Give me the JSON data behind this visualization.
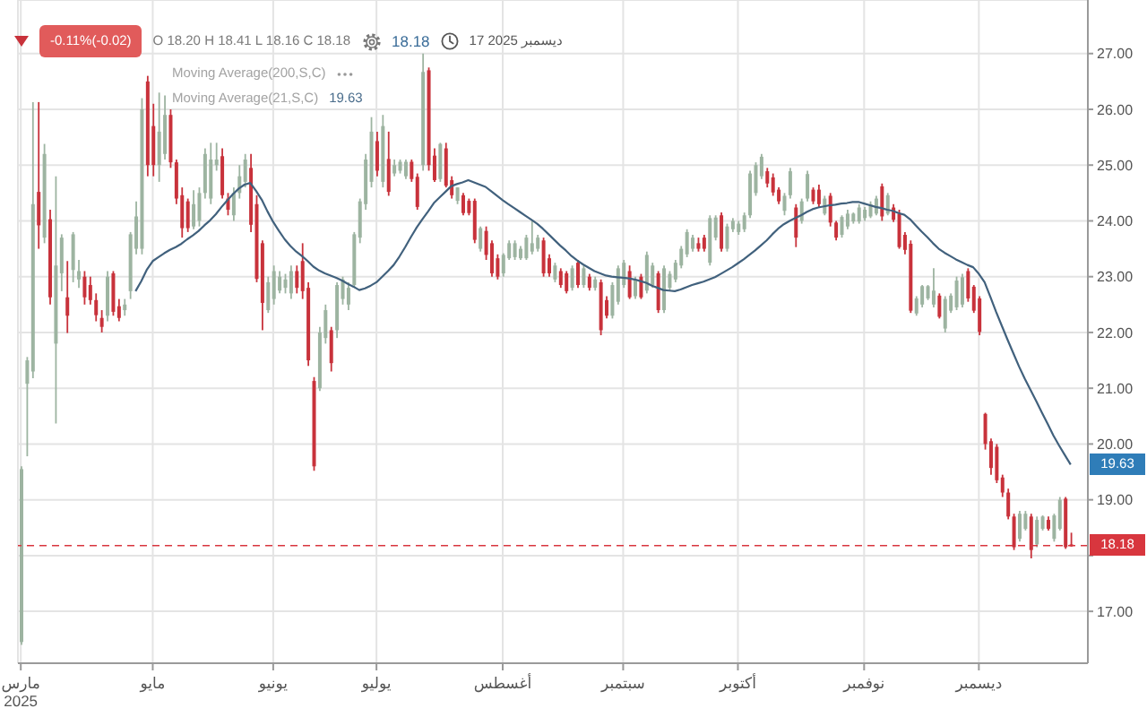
{
  "chart_data": {
    "type": "candlestick",
    "categories": [
      "مارس\n2025",
      null,
      null,
      null,
      null,
      null,
      null,
      null,
      null,
      null,
      null,
      null,
      null,
      null,
      null,
      null,
      null,
      null,
      null,
      null,
      null,
      null,
      null,
      "مايو",
      null,
      null,
      null,
      null,
      null,
      null,
      null,
      null,
      null,
      null,
      null,
      null,
      null,
      null,
      null,
      null,
      null,
      null,
      null,
      null,
      "يونيو",
      null,
      null,
      null,
      null,
      null,
      null,
      null,
      null,
      null,
      null,
      null,
      null,
      null,
      null,
      null,
      null,
      null,
      "يوليو",
      null,
      null,
      null,
      null,
      null,
      null,
      null,
      null,
      null,
      null,
      null,
      null,
      null,
      null,
      null,
      null,
      null,
      null,
      null,
      null,
      null,
      "أغسطس",
      null,
      null,
      null,
      null,
      null,
      null,
      null,
      null,
      null,
      null,
      null,
      null,
      null,
      null,
      null,
      null,
      null,
      null,
      null,
      null,
      "سبتمبر",
      null,
      null,
      null,
      null,
      null,
      null,
      null,
      null,
      null,
      null,
      null,
      null,
      null,
      null,
      null,
      null,
      null,
      null,
      null,
      "أكتوبر",
      null,
      null,
      null,
      null,
      null,
      null,
      null,
      null,
      null,
      null,
      null,
      null,
      null,
      null,
      null,
      null,
      null,
      null,
      null,
      null,
      null,
      "نوفمبر",
      null,
      null,
      null,
      null,
      null,
      null,
      null,
      null,
      null,
      null,
      null,
      null,
      null,
      null,
      null,
      null,
      null,
      null,
      null,
      "ديسمبر",
      null,
      null,
      null,
      null,
      null,
      null,
      null,
      null,
      null,
      null,
      null,
      null,
      null,
      null,
      null,
      null
    ],
    "ohlc": [
      [
        16.45,
        19.6,
        16.4,
        19.55
      ],
      [
        21.08,
        21.56,
        19.78,
        21.5
      ],
      [
        21.3,
        26.13,
        21.18,
        24.3
      ],
      [
        24.52,
        26.13,
        23.5,
        23.92
      ],
      [
        23.7,
        25.38,
        23.6,
        25.2
      ],
      [
        24.03,
        24.2,
        22.5,
        22.63
      ],
      [
        21.8,
        24.8,
        20.37,
        23.2
      ],
      [
        23.06,
        23.76,
        22.74,
        23.7
      ],
      [
        22.63,
        23.28,
        21.99,
        22.3
      ],
      [
        23.12,
        23.8,
        22.9,
        23.76
      ],
      [
        22.95,
        23.3,
        22.8,
        23.1
      ],
      [
        23.0,
        23.1,
        22.5,
        22.63
      ],
      [
        22.85,
        23.0,
        22.5,
        22.58
      ],
      [
        22.58,
        22.7,
        22.2,
        22.31
      ],
      [
        22.26,
        22.4,
        22.0,
        22.1
      ],
      [
        22.3,
        23.1,
        22.2,
        23.0
      ],
      [
        23.06,
        23.1,
        22.3,
        22.37
      ],
      [
        22.47,
        22.6,
        22.2,
        22.26
      ],
      [
        22.4,
        22.6,
        22.3,
        22.5
      ],
      [
        22.74,
        23.8,
        22.6,
        23.76
      ],
      [
        23.5,
        24.35,
        23.4,
        24.08
      ],
      [
        23.5,
        26.2,
        23.4,
        26.0
      ],
      [
        26.5,
        26.6,
        24.8,
        25.0
      ],
      [
        25.7,
        26.1,
        24.8,
        25.0
      ],
      [
        25.0,
        26.3,
        24.7,
        25.6
      ],
      [
        25.2,
        26.25,
        25.1,
        25.9
      ],
      [
        25.9,
        26.0,
        24.95,
        25.05
      ],
      [
        25.05,
        25.1,
        24.3,
        24.4
      ],
      [
        24.46,
        24.6,
        23.7,
        23.87
      ],
      [
        24.35,
        24.4,
        23.8,
        23.87
      ],
      [
        23.9,
        24.55,
        23.85,
        24.3
      ],
      [
        24.0,
        24.6,
        23.9,
        24.5
      ],
      [
        24.5,
        25.3,
        24.4,
        25.2
      ],
      [
        24.4,
        25.4,
        24.3,
        25.1
      ],
      [
        25.0,
        25.4,
        24.9,
        25.1
      ],
      [
        25.16,
        25.3,
        24.4,
        24.46
      ],
      [
        24.4,
        24.5,
        24.1,
        24.2
      ],
      [
        24.1,
        24.6,
        24.0,
        24.5
      ],
      [
        24.5,
        25.0,
        24.4,
        24.8
      ],
      [
        24.7,
        25.2,
        24.6,
        25.1
      ],
      [
        24.95,
        25.2,
        23.8,
        23.93
      ],
      [
        24.3,
        24.46,
        22.9,
        22.96
      ],
      [
        23.6,
        23.65,
        22.04,
        22.53
      ],
      [
        22.4,
        23.0,
        22.35,
        22.9
      ],
      [
        22.6,
        23.2,
        22.5,
        23.1
      ],
      [
        22.75,
        23.1,
        22.7,
        23.0
      ],
      [
        22.8,
        23.05,
        22.7,
        22.95
      ],
      [
        22.7,
        23.2,
        22.6,
        23.1
      ],
      [
        23.1,
        23.2,
        22.7,
        22.8
      ],
      [
        23.28,
        23.6,
        22.6,
        22.74
      ],
      [
        22.8,
        22.9,
        21.4,
        21.5
      ],
      [
        21.13,
        21.2,
        19.52,
        19.6
      ],
      [
        21.0,
        22.1,
        20.95,
        22.0
      ],
      [
        21.9,
        22.5,
        21.8,
        22.4
      ],
      [
        22.04,
        22.1,
        21.3,
        21.45
      ],
      [
        22.04,
        22.9,
        21.9,
        22.85
      ],
      [
        22.6,
        23.0,
        22.5,
        22.95
      ],
      [
        22.5,
        22.9,
        22.4,
        22.8
      ],
      [
        22.85,
        23.8,
        22.8,
        23.76
      ],
      [
        23.7,
        24.4,
        23.6,
        24.35
      ],
      [
        24.3,
        25.2,
        24.2,
        25.1
      ],
      [
        24.7,
        25.86,
        24.6,
        25.6
      ],
      [
        25.43,
        25.6,
        24.8,
        24.9
      ],
      [
        24.7,
        25.9,
        24.6,
        25.7
      ],
      [
        25.11,
        25.6,
        24.45,
        24.52
      ],
      [
        24.85,
        25.1,
        24.8,
        25.0
      ],
      [
        24.9,
        25.1,
        24.85,
        25.06
      ],
      [
        24.8,
        25.1,
        24.75,
        25.06
      ],
      [
        25.06,
        25.1,
        24.7,
        24.75
      ],
      [
        24.79,
        24.85,
        24.2,
        24.25
      ],
      [
        25.0,
        27.0,
        24.9,
        26.67
      ],
      [
        26.7,
        26.75,
        24.9,
        25.0
      ],
      [
        25.17,
        25.3,
        24.7,
        24.73
      ],
      [
        24.75,
        25.4,
        24.7,
        25.38
      ],
      [
        25.3,
        25.4,
        24.6,
        24.63
      ],
      [
        24.73,
        24.8,
        24.4,
        24.46
      ],
      [
        24.36,
        24.6,
        24.3,
        24.6
      ],
      [
        24.46,
        24.5,
        24.1,
        24.14
      ],
      [
        24.36,
        24.4,
        24.1,
        24.14
      ],
      [
        24.36,
        24.4,
        23.6,
        23.66
      ],
      [
        23.5,
        23.9,
        23.45,
        23.87
      ],
      [
        23.82,
        23.9,
        23.3,
        23.39
      ],
      [
        23.6,
        23.65,
        23.0,
        23.06
      ],
      [
        23.33,
        23.4,
        22.95,
        23.0
      ],
      [
        23.06,
        23.42,
        23.0,
        23.39
      ],
      [
        23.33,
        23.65,
        23.3,
        23.6
      ],
      [
        23.35,
        23.65,
        23.3,
        23.6
      ],
      [
        23.33,
        23.55,
        23.3,
        23.5
      ],
      [
        23.33,
        23.75,
        23.3,
        23.7
      ],
      [
        23.45,
        24.0,
        23.4,
        23.6
      ],
      [
        23.5,
        23.75,
        23.45,
        23.7
      ],
      [
        23.65,
        23.7,
        23.0,
        23.06
      ],
      [
        23.33,
        23.4,
        23.0,
        23.06
      ],
      [
        22.95,
        23.25,
        22.9,
        23.2
      ],
      [
        23.1,
        23.15,
        22.8,
        22.85
      ],
      [
        23.06,
        23.1,
        22.7,
        22.74
      ],
      [
        22.8,
        23.2,
        22.75,
        23.15
      ],
      [
        23.25,
        23.3,
        22.8,
        22.85
      ],
      [
        22.85,
        23.2,
        22.8,
        23.15
      ],
      [
        23.0,
        23.05,
        22.75,
        22.8
      ],
      [
        22.8,
        23.0,
        22.75,
        22.95
      ],
      [
        22.9,
        22.95,
        21.95,
        22.04
      ],
      [
        22.58,
        22.65,
        22.25,
        22.3
      ],
      [
        22.3,
        22.9,
        22.25,
        22.85
      ],
      [
        22.55,
        23.2,
        22.5,
        23.15
      ],
      [
        22.85,
        23.3,
        22.8,
        23.25
      ],
      [
        23.1,
        23.2,
        22.6,
        22.63
      ],
      [
        22.65,
        23.0,
        22.6,
        22.95
      ],
      [
        23.0,
        23.05,
        22.6,
        22.63
      ],
      [
        22.75,
        23.45,
        22.7,
        23.39
      ],
      [
        22.85,
        23.25,
        22.8,
        23.2
      ],
      [
        23.06,
        23.1,
        22.35,
        22.4
      ],
      [
        22.4,
        23.2,
        22.35,
        23.15
      ],
      [
        22.8,
        23.1,
        22.75,
        23.05
      ],
      [
        22.95,
        23.3,
        22.9,
        23.25
      ],
      [
        23.2,
        23.55,
        23.15,
        23.5
      ],
      [
        23.4,
        23.85,
        23.35,
        23.8
      ],
      [
        23.5,
        23.75,
        23.45,
        23.7
      ],
      [
        23.6,
        23.7,
        23.45,
        23.5
      ],
      [
        23.7,
        23.75,
        23.45,
        23.5
      ],
      [
        23.25,
        24.1,
        23.2,
        24.05
      ],
      [
        23.7,
        24.1,
        23.65,
        24.06
      ],
      [
        24.1,
        24.15,
        23.45,
        23.5
      ],
      [
        23.5,
        23.95,
        23.45,
        23.9
      ],
      [
        23.85,
        24.05,
        23.8,
        24.0
      ],
      [
        23.8,
        24.0,
        23.75,
        23.95
      ],
      [
        23.85,
        24.15,
        23.8,
        24.1
      ],
      [
        24.1,
        24.9,
        24.05,
        24.85
      ],
      [
        24.5,
        25.05,
        24.45,
        25.0
      ],
      [
        24.8,
        25.2,
        24.75,
        25.15
      ],
      [
        24.89,
        24.95,
        24.6,
        24.67
      ],
      [
        24.78,
        24.85,
        24.45,
        24.51
      ],
      [
        24.56,
        24.6,
        24.3,
        24.35
      ],
      [
        24.18,
        24.5,
        24.1,
        24.45
      ],
      [
        24.46,
        24.95,
        24.4,
        24.89
      ],
      [
        24.24,
        24.3,
        23.53,
        23.7
      ],
      [
        24.0,
        24.4,
        23.95,
        24.35
      ],
      [
        24.4,
        24.9,
        24.35,
        24.84
      ],
      [
        24.56,
        24.6,
        24.3,
        24.35
      ],
      [
        24.56,
        24.65,
        24.25,
        24.3
      ],
      [
        24.13,
        24.45,
        24.1,
        24.4
      ],
      [
        24.45,
        24.5,
        23.9,
        23.97
      ],
      [
        23.97,
        24.0,
        23.65,
        23.7
      ],
      [
        23.75,
        24.1,
        23.7,
        24.07
      ],
      [
        23.9,
        24.2,
        23.85,
        24.13
      ],
      [
        23.99,
        24.15,
        23.95,
        24.13
      ],
      [
        23.99,
        24.3,
        23.95,
        24.24
      ],
      [
        24.05,
        24.25,
        24.0,
        24.2
      ],
      [
        24.08,
        24.35,
        24.05,
        24.3
      ],
      [
        24.13,
        24.45,
        24.1,
        24.4
      ],
      [
        24.62,
        24.67,
        24.0,
        24.08
      ],
      [
        24.13,
        24.5,
        24.1,
        24.46
      ],
      [
        24.24,
        24.3,
        23.98,
        24.02
      ],
      [
        24.13,
        24.2,
        23.5,
        23.53
      ],
      [
        23.75,
        23.8,
        23.4,
        23.48
      ],
      [
        23.59,
        23.65,
        22.35,
        22.39
      ],
      [
        22.34,
        22.65,
        22.3,
        22.61
      ],
      [
        22.5,
        22.85,
        22.45,
        22.83
      ],
      [
        22.61,
        22.85,
        22.58,
        22.83
      ],
      [
        22.5,
        23.15,
        22.45,
        22.75
      ],
      [
        22.66,
        22.7,
        22.25,
        22.28
      ],
      [
        22.07,
        22.65,
        22.0,
        22.6
      ],
      [
        22.39,
        22.7,
        22.35,
        22.66
      ],
      [
        22.45,
        23.0,
        22.4,
        22.93
      ],
      [
        22.5,
        23.05,
        22.45,
        22.99
      ],
      [
        23.1,
        23.15,
        22.55,
        22.61
      ],
      [
        22.82,
        22.85,
        22.35,
        22.39
      ],
      [
        22.61,
        22.65,
        21.95,
        22.01
      ],
      [
        20.54,
        20.56,
        19.9,
        20.0
      ],
      [
        20.05,
        20.1,
        19.45,
        19.57
      ],
      [
        19.95,
        20.0,
        19.3,
        19.35
      ],
      [
        19.4,
        19.45,
        19.05,
        19.13
      ],
      [
        19.13,
        19.2,
        18.65,
        18.7
      ],
      [
        18.7,
        18.75,
        18.1,
        18.15
      ],
      [
        18.3,
        18.8,
        18.25,
        18.75
      ],
      [
        18.48,
        18.8,
        18.45,
        18.75
      ],
      [
        18.7,
        18.75,
        17.95,
        18.1
      ],
      [
        18.2,
        18.7,
        18.15,
        18.64
      ],
      [
        18.48,
        18.72,
        18.45,
        18.7
      ],
      [
        18.64,
        18.7,
        18.45,
        18.48
      ],
      [
        18.3,
        18.75,
        18.25,
        18.72
      ],
      [
        18.48,
        19.05,
        18.45,
        19.0
      ],
      [
        19.02,
        19.05,
        18.12,
        18.15
      ],
      [
        18.2,
        18.41,
        18.16,
        18.18
      ]
    ],
    "colors": [
      "#9db4a1",
      "#9db4a1",
      "#9db4a1",
      "#c8323b",
      "#9db4a1",
      "#c8323b",
      "#9db4a1",
      "#9db4a1",
      "#c8323b",
      "#9db4a1",
      "#9db4a1",
      "#c8323b",
      "#c8323b",
      "#c8323b",
      "#c8323b",
      "#9db4a1",
      "#c8323b",
      "#c8323b",
      "#9db4a1",
      "#9db4a1",
      "#9db4a1",
      "#9db4a1",
      "#c8323b",
      "#c8323b",
      "#9db4a1",
      "#9db4a1",
      "#c8323b",
      "#c8323b",
      "#c8323b",
      "#c8323b",
      "#9db4a1",
      "#9db4a1",
      "#9db4a1",
      "#9db4a1",
      "#9db4a1",
      "#c8323b",
      "#c8323b",
      "#9db4a1",
      "#9db4a1",
      "#9db4a1",
      "#c8323b",
      "#c8323b",
      "#c8323b",
      "#9db4a1",
      "#9db4a1",
      "#9db4a1",
      "#9db4a1",
      "#9db4a1",
      "#c8323b",
      "#c8323b",
      "#c8323b",
      "#c8323b",
      "#9db4a1",
      "#9db4a1",
      "#c8323b",
      "#9db4a1",
      "#9db4a1",
      "#9db4a1",
      "#9db4a1",
      "#9db4a1",
      "#9db4a1",
      "#9db4a1",
      "#c8323b",
      "#9db4a1",
      "#c8323b",
      "#9db4a1",
      "#9db4a1",
      "#9db4a1",
      "#c8323b",
      "#c8323b",
      "#9db4a1",
      "#c8323b",
      "#c8323b",
      "#9db4a1",
      "#c8323b",
      "#c8323b",
      "#9db4a1",
      "#c8323b",
      "#c8323b",
      "#c8323b",
      "#9db4a1",
      "#c8323b",
      "#c8323b",
      "#c8323b",
      "#9db4a1",
      "#9db4a1",
      "#9db4a1",
      "#9db4a1",
      "#9db4a1",
      "#9db4a1",
      "#9db4a1",
      "#c8323b",
      "#c8323b",
      "#9db4a1",
      "#c8323b",
      "#c8323b",
      "#9db4a1",
      "#c8323b",
      "#9db4a1",
      "#c8323b",
      "#9db4a1",
      "#c8323b",
      "#c8323b",
      "#9db4a1",
      "#9db4a1",
      "#9db4a1",
      "#c8323b",
      "#9db4a1",
      "#c8323b",
      "#9db4a1",
      "#9db4a1",
      "#c8323b",
      "#9db4a1",
      "#9db4a1",
      "#9db4a1",
      "#9db4a1",
      "#9db4a1",
      "#9db4a1",
      "#c8323b",
      "#c8323b",
      "#9db4a1",
      "#9db4a1",
      "#c8323b",
      "#9db4a1",
      "#9db4a1",
      "#9db4a1",
      "#9db4a1",
      "#9db4a1",
      "#9db4a1",
      "#9db4a1",
      "#c8323b",
      "#c8323b",
      "#c8323b",
      "#9db4a1",
      "#9db4a1",
      "#c8323b",
      "#9db4a1",
      "#9db4a1",
      "#c8323b",
      "#c8323b",
      "#9db4a1",
      "#c8323b",
      "#c8323b",
      "#9db4a1",
      "#9db4a1",
      "#9db4a1",
      "#9db4a1",
      "#9db4a1",
      "#9db4a1",
      "#9db4a1",
      "#c8323b",
      "#9db4a1",
      "#c8323b",
      "#c8323b",
      "#c8323b",
      "#c8323b",
      "#9db4a1",
      "#9db4a1",
      "#9db4a1",
      "#9db4a1",
      "#c8323b",
      "#9db4a1",
      "#9db4a1",
      "#9db4a1",
      "#9db4a1",
      "#c8323b",
      "#c8323b",
      "#c8323b",
      "#c8323b",
      "#c8323b",
      "#c8323b",
      "#c8323b",
      "#c8323b",
      "#c8323b",
      "#9db4a1",
      "#9db4a1",
      "#c8323b",
      "#9db4a1",
      "#9db4a1",
      "#c8323b",
      "#9db4a1",
      "#9db4a1",
      "#c8323b",
      "#c8323b"
    ],
    "series": [
      {
        "type": "line",
        "color": "#41617d",
        "values": [
          null,
          null,
          null,
          null,
          null,
          null,
          null,
          null,
          null,
          null,
          null,
          null,
          null,
          null,
          null,
          null,
          null,
          null,
          null,
          null,
          22.74,
          22.92,
          23.13,
          23.28,
          23.35,
          23.42,
          23.48,
          23.53,
          23.59,
          23.67,
          23.74,
          23.82,
          23.92,
          24.01,
          24.12,
          24.25,
          24.37,
          24.48,
          24.58,
          24.65,
          24.68,
          24.54,
          24.38,
          24.17,
          23.98,
          23.82,
          23.67,
          23.55,
          23.45,
          23.37,
          23.28,
          23.18,
          23.11,
          23.06,
          23.02,
          22.98,
          22.93,
          22.87,
          22.82,
          22.76,
          22.79,
          22.84,
          22.9,
          23.0,
          23.1,
          23.21,
          23.36,
          23.53,
          23.71,
          23.88,
          24.03,
          24.17,
          24.32,
          24.42,
          24.52,
          24.62,
          24.66,
          24.69,
          24.73,
          24.69,
          24.65,
          24.61,
          24.53,
          24.45,
          24.37,
          24.3,
          24.23,
          24.16,
          24.09,
          24.02,
          23.95,
          23.86,
          23.76,
          23.66,
          23.56,
          23.47,
          23.37,
          23.29,
          23.22,
          23.16,
          23.1,
          23.06,
          23.02,
          23.0,
          22.99,
          22.98,
          22.97,
          22.95,
          22.92,
          22.89,
          22.84,
          22.8,
          22.76,
          22.75,
          22.74,
          22.77,
          22.81,
          22.85,
          22.88,
          22.91,
          22.95,
          22.99,
          23.05,
          23.11,
          23.17,
          23.24,
          23.31,
          23.39,
          23.47,
          23.56,
          23.65,
          23.76,
          23.86,
          23.94,
          24.0,
          24.05,
          24.1,
          24.16,
          24.21,
          24.24,
          24.26,
          24.28,
          24.29,
          24.31,
          24.32,
          24.34,
          24.34,
          24.31,
          24.28,
          24.25,
          24.23,
          24.2,
          24.18,
          24.14,
          24.11,
          24.03,
          23.92,
          23.81,
          23.71,
          23.6,
          23.5,
          23.43,
          23.37,
          23.31,
          23.26,
          23.21,
          23.17,
          23.05,
          22.9,
          22.64,
          22.37,
          22.12,
          21.87,
          21.63,
          21.39,
          21.17,
          20.97,
          20.77,
          20.56,
          20.36,
          20.15,
          19.97,
          19.8,
          19.63
        ]
      }
    ],
    "ylim": [
      16.07,
      27.96
    ],
    "yticks": [
      {
        "value": 17,
        "label": "17.00"
      },
      {
        "value": 18,
        "label": null
      },
      {
        "value": 19,
        "label": "19.00"
      },
      {
        "value": 20,
        "label": "20.00"
      },
      {
        "value": 21,
        "label": "21.00"
      },
      {
        "value": 22,
        "label": "22.00"
      },
      {
        "value": 23,
        "label": "23.00"
      },
      {
        "value": 24,
        "label": "24.00"
      },
      {
        "value": 25,
        "label": "25.00"
      },
      {
        "value": 26,
        "label": "26.00"
      },
      {
        "value": 27,
        "label": "27.00"
      }
    ],
    "grid": true,
    "ref_lines": [
      {
        "axis": "y",
        "value": 18.18,
        "label": "18.18",
        "color": "#d8363e",
        "line_style": "dashed"
      }
    ],
    "annotations": [
      "-0.11%(-0.02)",
      "O 18.20 H 18.41 L 18.16 C 18.18",
      "18.18",
      "17 2025 ديسمبر",
      "Moving Average(200,S,C)",
      "Moving Average(21,S,C)",
      "19.63",
      {
        "text": "19.63",
        "y": 19.63
      }
    ]
  }
}
